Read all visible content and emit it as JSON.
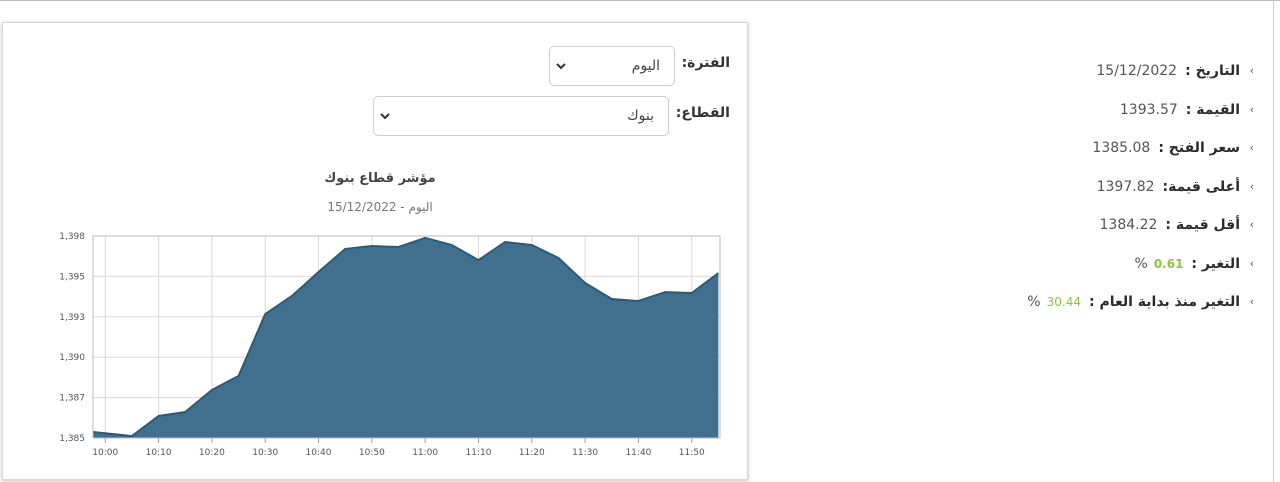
{
  "form": {
    "period_label": "الفترة:",
    "period_value": "اليوم",
    "sector_label": "القطاع:",
    "sector_value": "بنوك"
  },
  "chart_data": {
    "type": "area",
    "title": "مؤشر قطاع بنوك",
    "subtitle": "اليوم - 15/12/2022",
    "x": [
      597.7,
      605,
      610,
      615,
      620,
      625,
      630,
      635,
      640,
      645,
      650,
      655,
      660,
      665,
      670,
      675,
      680,
      685,
      690,
      695,
      700,
      705,
      710,
      715
    ],
    "values": [
      1385.37,
      1385.12,
      1386.36,
      1386.61,
      1387.97,
      1388.84,
      1392.67,
      1393.79,
      1395.27,
      1396.7,
      1396.88,
      1396.82,
      1397.38,
      1396.94,
      1396.01,
      1397.13,
      1396.94,
      1396.14,
      1394.59,
      1393.6,
      1393.48,
      1394.03,
      1393.97,
      1395.21
    ],
    "color": "#41708f",
    "line_color": "#2d5a78",
    "xlim": [
      597.7,
      715.3
    ],
    "ylim": [
      1385,
      1397.5
    ],
    "xticks": [
      {
        "value": 600,
        "label": "10:00"
      },
      {
        "value": 610,
        "label": "10:10"
      },
      {
        "value": 620,
        "label": "10:20"
      },
      {
        "value": 630,
        "label": "10:30"
      },
      {
        "value": 640,
        "label": "10:40"
      },
      {
        "value": 650,
        "label": "10:50"
      },
      {
        "value": 660,
        "label": "11:00"
      },
      {
        "value": 670,
        "label": "11:10"
      },
      {
        "value": 680,
        "label": "11:20"
      },
      {
        "value": 690,
        "label": "11:30"
      },
      {
        "value": 700,
        "label": "11:40"
      },
      {
        "value": 710,
        "label": "11:50"
      }
    ],
    "yticks": [
      {
        "value": 1385,
        "label": "1,385"
      },
      {
        "value": 1387.5,
        "label": "1,387"
      },
      {
        "value": 1390,
        "label": "1,390"
      },
      {
        "value": 1392.5,
        "label": "1,393"
      },
      {
        "value": 1395,
        "label": "1,395"
      },
      {
        "value": 1397.5,
        "label": "1,398"
      }
    ],
    "grid": true
  },
  "info": [
    {
      "label": "التاريخ :",
      "value": "15/12/2022"
    },
    {
      "label": "القيمة :",
      "value": "1393.57"
    },
    {
      "label": "سعر الفتح :",
      "value": "1385.08"
    },
    {
      "label": "أعلى قيمة:",
      "value": "1397.82"
    },
    {
      "label": "أقل قيمة :",
      "value": "1384.22"
    },
    {
      "label": "التغير :",
      "value": "0.61",
      "unit": "%",
      "value_color": "#8cc63f",
      "bold": true
    },
    {
      "label": "التغير منذ بداية العام :",
      "value": "30.44",
      "unit": "%",
      "value_color": "#8cc63f"
    }
  ]
}
